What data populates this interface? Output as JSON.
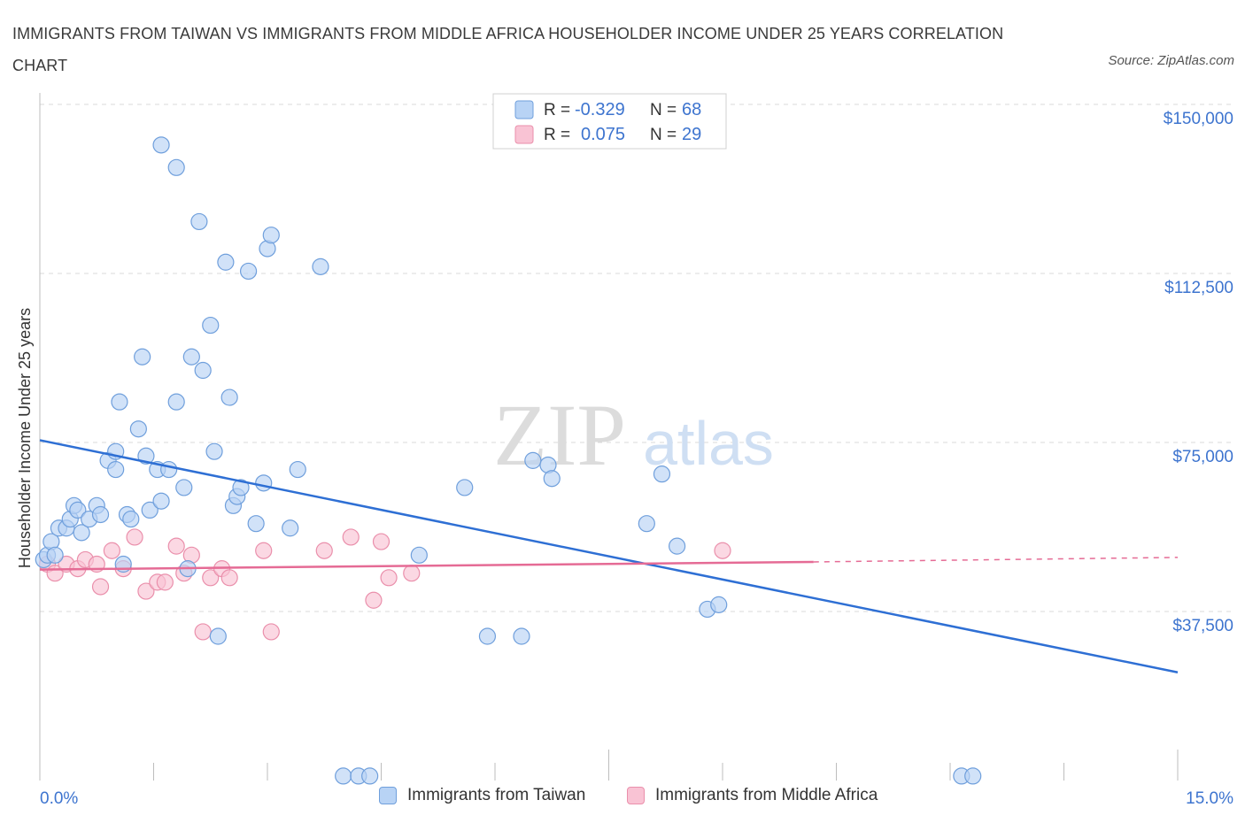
{
  "title": "IMMIGRANTS FROM TAIWAN VS IMMIGRANTS FROM MIDDLE AFRICA HOUSEHOLDER INCOME UNDER 25 YEARS CORRELATION CHART",
  "source": "Source: ZipAtlas.com",
  "watermark": {
    "zip": "ZIP",
    "atlas": "atlas"
  },
  "legend_top": {
    "rows": [
      {
        "r_label": "R = ",
        "r_value": "-0.329",
        "n_label": "N = ",
        "n_value": "68"
      },
      {
        "r_label": "R = ",
        "r_value": "0.075",
        "n_label": "N = ",
        "n_value": "29"
      }
    ]
  },
  "colors": {
    "taiwan_fill": "#b8d3f5",
    "taiwan_stroke": "#6f9fdc",
    "taiwan_line": "#2e6fd4",
    "africa_fill": "#f9c3d4",
    "africa_stroke": "#ea8fab",
    "africa_line": "#e56b95",
    "axis_value": "#3d74cf",
    "grid": "#d9d9d9"
  },
  "chart_data": {
    "type": "scatter",
    "title": "IMMIGRANTS FROM TAIWAN VS IMMIGRANTS FROM MIDDLE AFRICA HOUSEHOLDER INCOME UNDER 25 YEARS CORRELATION CHART",
    "xlabel": "",
    "ylabel": "Householder Income Under 25 years",
    "xlim": [
      0,
      15
    ],
    "ylim": [
      0,
      150000
    ],
    "x_tick_labels": [
      "0.0%",
      "15.0%"
    ],
    "y_ticks": [
      37500,
      75000,
      112500,
      150000
    ],
    "y_tick_labels": [
      "$37,500",
      "$75,000",
      "$112,500",
      "$150,000"
    ],
    "grid": "horizontal dashed",
    "legend": "top-center and bottom",
    "series": [
      {
        "name": "Immigrants from Taiwan",
        "r": -0.329,
        "n": 68,
        "trend": {
          "x": [
            0,
            15
          ],
          "y": [
            75500,
            24000
          ]
        },
        "points": [
          [
            0.05,
            49000
          ],
          [
            0.1,
            50000
          ],
          [
            0.15,
            53000
          ],
          [
            0.2,
            50000
          ],
          [
            0.25,
            56000
          ],
          [
            0.35,
            56000
          ],
          [
            0.4,
            58000
          ],
          [
            0.45,
            61000
          ],
          [
            0.5,
            60000
          ],
          [
            0.55,
            55000
          ],
          [
            0.65,
            58000
          ],
          [
            0.75,
            61000
          ],
          [
            0.8,
            59000
          ],
          [
            0.9,
            71000
          ],
          [
            1.0,
            73000
          ],
          [
            1.0,
            69000
          ],
          [
            1.05,
            84000
          ],
          [
            1.1,
            48000
          ],
          [
            1.15,
            59000
          ],
          [
            1.2,
            58000
          ],
          [
            1.3,
            78000
          ],
          [
            1.35,
            94000
          ],
          [
            1.4,
            72000
          ],
          [
            1.45,
            60000
          ],
          [
            1.55,
            69000
          ],
          [
            1.6,
            62000
          ],
          [
            1.6,
            141000
          ],
          [
            1.7,
            69000
          ],
          [
            1.8,
            84000
          ],
          [
            1.8,
            136000
          ],
          [
            1.9,
            65000
          ],
          [
            1.95,
            47000
          ],
          [
            2.0,
            94000
          ],
          [
            2.1,
            124000
          ],
          [
            2.15,
            91000
          ],
          [
            2.25,
            101000
          ],
          [
            2.3,
            73000
          ],
          [
            2.35,
            32000
          ],
          [
            2.45,
            115000
          ],
          [
            2.5,
            85000
          ],
          [
            2.55,
            61000
          ],
          [
            2.6,
            63000
          ],
          [
            2.65,
            65000
          ],
          [
            2.75,
            113000
          ],
          [
            2.85,
            57000
          ],
          [
            2.95,
            66000
          ],
          [
            3.0,
            118000
          ],
          [
            3.05,
            121000
          ],
          [
            3.3,
            56000
          ],
          [
            3.4,
            69000
          ],
          [
            3.7,
            114000
          ],
          [
            4.0,
            1000
          ],
          [
            4.2,
            1000
          ],
          [
            4.35,
            1000
          ],
          [
            5.0,
            50000
          ],
          [
            5.6,
            65000
          ],
          [
            5.9,
            32000
          ],
          [
            6.35,
            32000
          ],
          [
            6.5,
            71000
          ],
          [
            6.7,
            70000
          ],
          [
            6.75,
            67000
          ],
          [
            8.0,
            57000
          ],
          [
            8.2,
            68000
          ],
          [
            8.4,
            52000
          ],
          [
            8.8,
            38000
          ],
          [
            8.95,
            39000
          ],
          [
            12.15,
            1000
          ],
          [
            12.3,
            1000
          ]
        ]
      },
      {
        "name": "Immigrants from Middle Africa",
        "r": 0.075,
        "n": 29,
        "trend": {
          "x": [
            0,
            10.2
          ],
          "y": [
            46800,
            48500
          ],
          "dashed_to": [
            15,
            49500
          ]
        },
        "points": [
          [
            0.1,
            48000
          ],
          [
            0.2,
            46000
          ],
          [
            0.35,
            48000
          ],
          [
            0.5,
            47000
          ],
          [
            0.6,
            49000
          ],
          [
            0.75,
            48000
          ],
          [
            0.8,
            43000
          ],
          [
            0.95,
            51000
          ],
          [
            1.1,
            47000
          ],
          [
            1.25,
            54000
          ],
          [
            1.4,
            42000
          ],
          [
            1.55,
            44000
          ],
          [
            1.65,
            44000
          ],
          [
            1.8,
            52000
          ],
          [
            1.9,
            46000
          ],
          [
            2.0,
            50000
          ],
          [
            2.15,
            33000
          ],
          [
            2.25,
            45000
          ],
          [
            2.4,
            47000
          ],
          [
            2.5,
            45000
          ],
          [
            2.95,
            51000
          ],
          [
            3.05,
            33000
          ],
          [
            3.75,
            51000
          ],
          [
            4.1,
            54000
          ],
          [
            4.4,
            40000
          ],
          [
            4.5,
            53000
          ],
          [
            4.6,
            45000
          ],
          [
            4.9,
            46000
          ],
          [
            9.0,
            51000
          ]
        ]
      }
    ]
  },
  "legend_bottom": [
    {
      "label": "Immigrants from Taiwan"
    },
    {
      "label": "Immigrants from Middle Africa"
    }
  ]
}
